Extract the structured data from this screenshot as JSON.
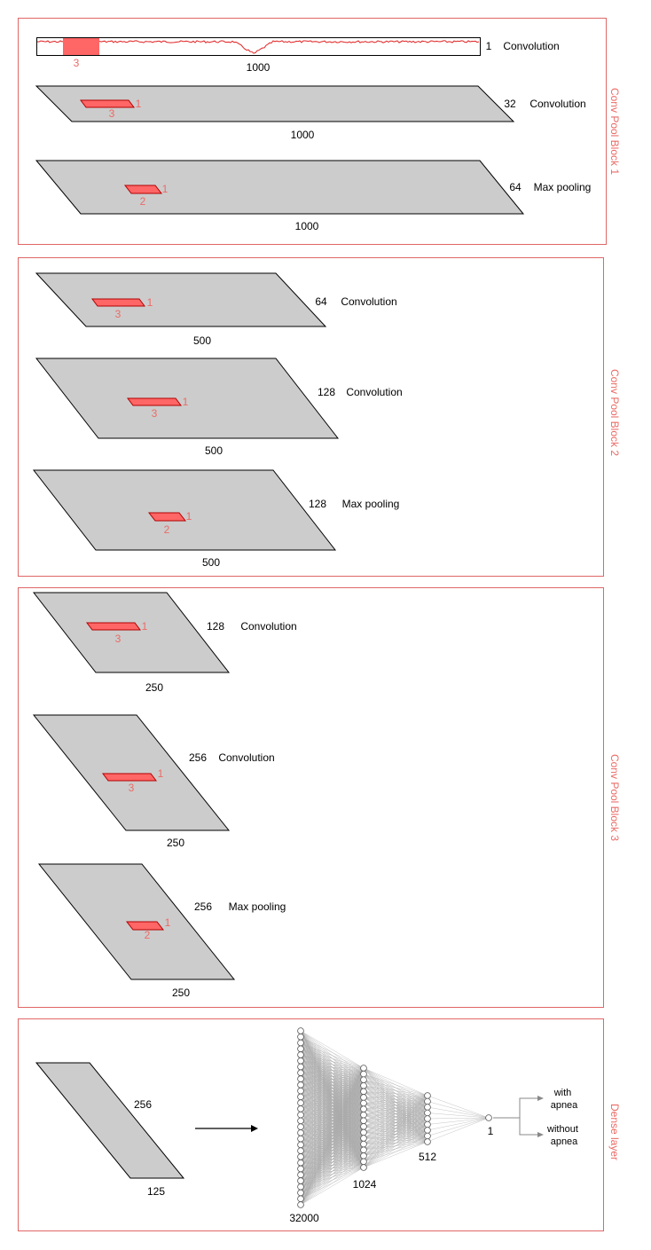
{
  "colors": {
    "frame": "#e06666",
    "kernel_fill": "#ff6666",
    "kernel_stroke": "#b20000",
    "slab_fill": "#cccccc",
    "signal": "#e02020",
    "net_lines": "#aaaaaa"
  },
  "blocks": [
    {
      "label": "Conv Pool Block 1",
      "layers": [
        {
          "channels": "1",
          "op": "Convolution",
          "length": "1000",
          "kernel_size": "3",
          "kernel_depth": ""
        },
        {
          "channels": "32",
          "op": "Convolution",
          "length": "1000",
          "kernel_size": "3",
          "kernel_depth": "1"
        },
        {
          "channels": "64",
          "op": "Max pooling",
          "length": "1000",
          "kernel_size": "2",
          "kernel_depth": "1"
        }
      ]
    },
    {
      "label": "Conv Pool Block 2",
      "layers": [
        {
          "channels": "64",
          "op": "Convolution",
          "length": "500",
          "kernel_size": "3",
          "kernel_depth": "1"
        },
        {
          "channels": "128",
          "op": "Convolution",
          "length": "500",
          "kernel_size": "3",
          "kernel_depth": "1"
        },
        {
          "channels": "128",
          "op": "Max pooling",
          "length": "500",
          "kernel_size": "2",
          "kernel_depth": "1"
        }
      ]
    },
    {
      "label": "Conv Pool Block 3",
      "layers": [
        {
          "channels": "128",
          "op": "Convolution",
          "length": "250",
          "kernel_size": "3",
          "kernel_depth": "1"
        },
        {
          "channels": "256",
          "op": "Convolution",
          "length": "250",
          "kernel_size": "3",
          "kernel_depth": "1"
        },
        {
          "channels": "256",
          "op": "Max pooling",
          "length": "250",
          "kernel_size": "2",
          "kernel_depth": "1"
        }
      ]
    }
  ],
  "dense": {
    "label": "Dense layer",
    "input": {
      "channels": "256",
      "length": "125"
    },
    "layers": [
      "32000",
      "1024",
      "512",
      "1"
    ],
    "outputs": [
      "with\napnea",
      "without\napnea"
    ],
    "output_with": [
      "with",
      "apnea"
    ],
    "output_without": [
      "without",
      "apnea"
    ]
  }
}
